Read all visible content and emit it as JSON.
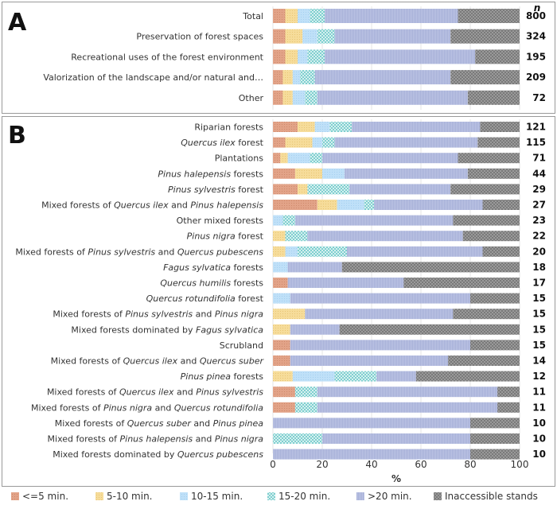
{
  "legend": [
    {
      "key": "lt5",
      "label": "<=5 min."
    },
    {
      "key": "m5_10",
      "label": "5-10 min."
    },
    {
      "key": "m10_15",
      "label": "10-15 min."
    },
    {
      "key": "m15_20",
      "label": "15-20 min."
    },
    {
      "key": "gt20",
      "label": ">20 min."
    },
    {
      "key": "inacc",
      "label": "Inaccessible stands"
    }
  ],
  "colors": {
    "lt5": "#e2a388",
    "m5_10": "#f6dc9a",
    "m10_15": "#bfe0f8",
    "m15_20": "#bfe9e9",
    "gt20": "#b7bfe0",
    "inacc": "#8f8f8f"
  },
  "chart_data": [
    {
      "type": "bar",
      "orientation": "horizontal",
      "stacked": true,
      "panel": "A",
      "n_header": "n",
      "xlim": [
        0,
        100
      ],
      "categories": [
        "Total",
        "Preservation of forest spaces",
        "Recreational uses of the forest environment",
        "Valorization of the landscape and/or natural and…",
        "Other"
      ],
      "n": [
        "800",
        "324",
        "195",
        "209",
        "72"
      ],
      "series": [
        {
          "name": "<=5 min.",
          "values": [
            5,
            5,
            5,
            4,
            4
          ]
        },
        {
          "name": "5-10 min.",
          "values": [
            5,
            7,
            5,
            4,
            4
          ]
        },
        {
          "name": "10-15 min.",
          "values": [
            5,
            6,
            4,
            3,
            5
          ]
        },
        {
          "name": "15-20 min.",
          "values": [
            6,
            7,
            7,
            6,
            5
          ]
        },
        {
          "name": ">20 min.",
          "values": [
            54,
            47,
            61,
            55,
            61
          ]
        },
        {
          "name": "Inaccessible stands",
          "values": [
            25,
            28,
            18,
            28,
            21
          ]
        }
      ]
    },
    {
      "type": "bar",
      "orientation": "horizontal",
      "stacked": true,
      "panel": "B",
      "xlim": [
        0,
        100
      ],
      "xticks": [
        "0",
        "20",
        "40",
        "60",
        "80",
        "100"
      ],
      "xlabel": "%",
      "categories": [
        "Riparian forests",
        "Quercus ilex forest",
        "Plantations",
        "Pinus halepensis forests",
        "Pinus sylvestris forest",
        "Mixed forests of Quercus ilex and Pinus halepensis",
        "Other mixed forests",
        "Pinus nigra forest",
        "Mixed forests of Pinus sylvestris and Quercus pubescens",
        "Fagus sylvatica forests",
        "Quercus humilis forests",
        "Quercus rotundifolia forest",
        "Mixed forests of Pinus sylvestris and Pinus nigra",
        "Mixed forests dominated by Fagus sylvatica",
        "Scrubland",
        "Mixed forests of Quercus ilex and Quercus suber",
        "Pinus pinea forests",
        "Mixed forests of Quercus ilex and Pinus sylvestris",
        "Mixed forests of Pinus nigra and Quercus rotundifolia",
        "Mixed forests of Quercus suber and Pinus pinea",
        "Mixed forests of Pinus halepensis and Pinus nigra",
        "Mixed forests dominated by Quercus pubescens"
      ],
      "label_parts": [
        [
          {
            "t": "Riparian forests",
            "i": false
          }
        ],
        [
          {
            "t": "Quercus ilex",
            "i": true
          },
          {
            "t": " forest",
            "i": false
          }
        ],
        [
          {
            "t": "Plantations",
            "i": false
          }
        ],
        [
          {
            "t": "Pinus halepensis",
            "i": true
          },
          {
            "t": " forests",
            "i": false
          }
        ],
        [
          {
            "t": "Pinus sylvestris",
            "i": true
          },
          {
            "t": " forest",
            "i": false
          }
        ],
        [
          {
            "t": "Mixed forests of ",
            "i": false
          },
          {
            "t": "Quercus ilex",
            "i": true
          },
          {
            "t": "  and  ",
            "i": false
          },
          {
            "t": "Pinus halepensis",
            "i": true
          }
        ],
        [
          {
            "t": "Other mixed forests",
            "i": false
          }
        ],
        [
          {
            "t": "Pinus nigra",
            "i": true
          },
          {
            "t": " forest",
            "i": false
          }
        ],
        [
          {
            "t": "Mixed forests of ",
            "i": false
          },
          {
            "t": "Pinus sylvestris",
            "i": true
          },
          {
            "t": "  and  ",
            "i": false
          },
          {
            "t": "Quercus pubescens",
            "i": true
          }
        ],
        [
          {
            "t": "Fagus sylvatica",
            "i": true
          },
          {
            "t": " forests",
            "i": false
          }
        ],
        [
          {
            "t": "Quercus humilis",
            "i": true
          },
          {
            "t": " forests",
            "i": false
          }
        ],
        [
          {
            "t": "Quercus rotundifolia",
            "i": true
          },
          {
            "t": " forest",
            "i": false
          }
        ],
        [
          {
            "t": "Mixed forests of ",
            "i": false
          },
          {
            "t": "Pinus sylvestris",
            "i": true
          },
          {
            "t": "  and  ",
            "i": false
          },
          {
            "t": "Pinus nigra",
            "i": true
          }
        ],
        [
          {
            "t": "Mixed forests dominated by ",
            "i": false
          },
          {
            "t": "Fagus sylvatica",
            "i": true
          }
        ],
        [
          {
            "t": "Scrubland",
            "i": false
          }
        ],
        [
          {
            "t": "Mixed forests of ",
            "i": false
          },
          {
            "t": "Quercus ilex",
            "i": true
          },
          {
            "t": "  and  ",
            "i": false
          },
          {
            "t": "Quercus suber",
            "i": true
          }
        ],
        [
          {
            "t": "Pinus pinea",
            "i": true
          },
          {
            "t": " forests",
            "i": false
          }
        ],
        [
          {
            "t": "Mixed forests of ",
            "i": false
          },
          {
            "t": "Quercus ilex",
            "i": true
          },
          {
            "t": "  and  ",
            "i": false
          },
          {
            "t": "Pinus sylvestris",
            "i": true
          }
        ],
        [
          {
            "t": "Mixed forests of ",
            "i": false
          },
          {
            "t": "Pinus nigra",
            "i": true
          },
          {
            "t": "  and  ",
            "i": false
          },
          {
            "t": "Quercus rotundifolia",
            "i": true
          }
        ],
        [
          {
            "t": "Mixed forests of ",
            "i": false
          },
          {
            "t": "Quercus suber",
            "i": true
          },
          {
            "t": "  and  ",
            "i": false
          },
          {
            "t": "Pinus pinea",
            "i": true
          }
        ],
        [
          {
            "t": "Mixed forests of ",
            "i": false
          },
          {
            "t": "Pinus halepensis",
            "i": true
          },
          {
            "t": "  and  ",
            "i": false
          },
          {
            "t": "Pinus nigra",
            "i": true
          }
        ],
        [
          {
            "t": "Mixed forests dominated by ",
            "i": false
          },
          {
            "t": "Quercus pubescens",
            "i": true
          }
        ]
      ],
      "n": [
        "121",
        "115",
        "71",
        "44",
        "29",
        "27",
        "23",
        "22",
        "20",
        "18",
        "17",
        "15",
        "15",
        "15",
        "15",
        "14",
        "12",
        "11",
        "11",
        "10",
        "10",
        "10"
      ],
      "series": [
        {
          "name": "<=5 min.",
          "values": [
            10,
            5,
            3,
            9,
            10,
            18,
            0,
            0,
            0,
            0,
            6,
            0,
            0,
            0,
            7,
            7,
            0,
            9,
            9,
            0,
            0,
            0
          ]
        },
        {
          "name": "5-10 min.",
          "values": [
            7,
            11,
            3,
            11,
            4,
            8,
            0,
            5,
            5,
            0,
            0,
            0,
            13,
            7,
            0,
            0,
            8,
            0,
            0,
            0,
            0,
            0
          ]
        },
        {
          "name": "10-15 min.",
          "values": [
            6,
            4,
            9,
            9,
            0,
            11,
            4,
            0,
            5,
            6,
            0,
            7,
            0,
            0,
            0,
            0,
            17,
            0,
            0,
            0,
            0,
            0
          ]
        },
        {
          "name": "15-20 min.",
          "values": [
            9,
            5,
            5,
            0,
            17,
            4,
            5,
            9,
            20,
            0,
            0,
            0,
            0,
            0,
            0,
            0,
            17,
            9,
            9,
            0,
            20,
            0
          ]
        },
        {
          "name": ">20 min.",
          "values": [
            52,
            58,
            55,
            50,
            41,
            44,
            64,
            63,
            55,
            22,
            47,
            73,
            60,
            20,
            73,
            64,
            16,
            73,
            73,
            80,
            60,
            80
          ]
        },
        {
          "name": "Inaccessible stands",
          "values": [
            16,
            17,
            25,
            21,
            28,
            15,
            27,
            23,
            15,
            72,
            47,
            20,
            27,
            73,
            20,
            29,
            42,
            9,
            9,
            20,
            20,
            20
          ]
        }
      ]
    }
  ]
}
